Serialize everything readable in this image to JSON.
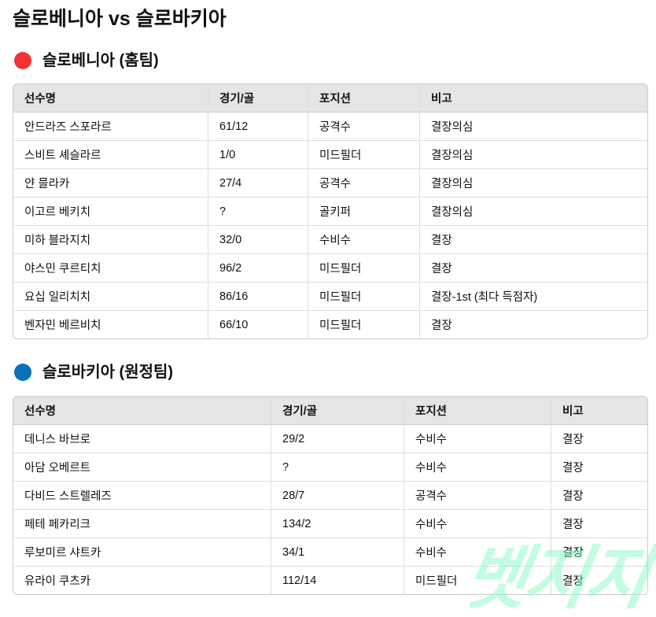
{
  "title": "슬로베니아 vs 슬로바키아",
  "colors": {
    "home": "#f33333",
    "away": "#0a70b8"
  },
  "home": {
    "heading": "슬로베니아 (홈팀)",
    "headers": [
      "선수명",
      "경기/골",
      "포지션",
      "비고"
    ],
    "rows": [
      [
        "안드라즈 스포라르",
        "61/12",
        "공격수",
        "결장의심"
      ],
      [
        "스비트 셰슬라르",
        "1/0",
        "미드필더",
        "결장의심"
      ],
      [
        "얀 믈라카",
        "27/4",
        "공격수",
        "결장의심"
      ],
      [
        "이고르 베키치",
        "?",
        "골키퍼",
        "결장의심"
      ],
      [
        "미하 블라지치",
        "32/0",
        "수비수",
        "결장"
      ],
      [
        "야스민 쿠르티치",
        "96/2",
        "미드필더",
        "결장"
      ],
      [
        "요십 일리치치",
        "86/16",
        "미드필더",
        "결장-1st (최다 득점자)"
      ],
      [
        "벤자민 베르비치",
        "66/10",
        "미드필더",
        "결장"
      ]
    ]
  },
  "away": {
    "heading": "슬로바키아 (원정팀)",
    "headers": [
      "선수명",
      "경기/골",
      "포지션",
      "비고"
    ],
    "rows": [
      [
        "데니스 바브로",
        "29/2",
        "수비수",
        "결장"
      ],
      [
        "아담 오베르트",
        "?",
        "수비수",
        "결장"
      ],
      [
        "다비드 스트렐레즈",
        "28/7",
        "공격수",
        "결장"
      ],
      [
        "페테 페카리크",
        "134/2",
        "수비수",
        "결장"
      ],
      [
        "루보미르 샤트카",
        "34/1",
        "수비수",
        "결장"
      ],
      [
        "유라이 쿠츠카",
        "112/14",
        "미드필더",
        "결장"
      ]
    ]
  },
  "watermark": "벳지지"
}
